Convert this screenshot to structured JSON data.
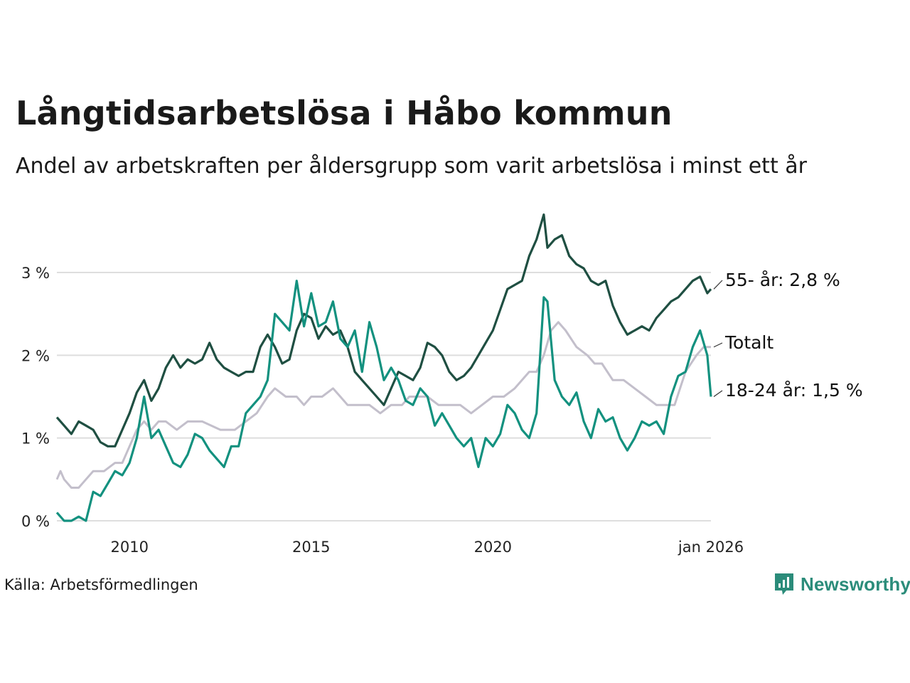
{
  "title": "Långtidsarbetslösa i Håbo kommun",
  "subtitle": "Andel av arbetskraften per åldersgrupp som varit arbetslösa i minst ett år",
  "source": "Källa: Arbetsförmedlingen",
  "brand": "Newsworthy",
  "colors": {
    "total": "#c3bfcb",
    "age_55": "#1f4f42",
    "age_18_24": "#13917f",
    "grid": "#dedede",
    "brand": "#2b8c7a"
  },
  "chart_data": {
    "type": "line",
    "title": "Långtidsarbetslösa i Håbo kommun",
    "subtitle": "Andel av arbetskraften per åldersgrupp som varit arbetslösa i minst ett år",
    "xlabel": "",
    "ylabel": "",
    "x_range": [
      2008.0,
      2026.0
    ],
    "ylim": [
      0,
      3.8
    ],
    "y_ticks": [
      0,
      1,
      2,
      3
    ],
    "y_tick_labels": [
      "0 %",
      "1 %",
      "2 %",
      "3 %"
    ],
    "x_ticks": [
      2010,
      2015,
      2020,
      2026
    ],
    "x_tick_labels": [
      "2010",
      "2015",
      "2020",
      "jan 2026"
    ],
    "grid": true,
    "series": [
      {
        "key": "total",
        "name": "Totalt",
        "label": "Totalt",
        "x": [
          2008.0,
          2008.1,
          2008.2,
          2008.4,
          2008.6,
          2008.8,
          2009.0,
          2009.3,
          2009.6,
          2009.8,
          2010.0,
          2010.2,
          2010.4,
          2010.6,
          2010.8,
          2011.0,
          2011.3,
          2011.6,
          2012.0,
          2012.5,
          2012.9,
          2013.2,
          2013.5,
          2013.8,
          2014.0,
          2014.3,
          2014.6,
          2014.8,
          2015.0,
          2015.3,
          2015.6,
          2015.8,
          2016.0,
          2016.3,
          2016.6,
          2016.9,
          2017.2,
          2017.5,
          2017.7,
          2017.9,
          2018.2,
          2018.5,
          2018.8,
          2019.1,
          2019.4,
          2019.7,
          2020.0,
          2020.3,
          2020.6,
          2020.8,
          2021.0,
          2021.2,
          2021.4,
          2021.6,
          2021.8,
          2022.0,
          2022.3,
          2022.6,
          2022.8,
          2023.0,
          2023.3,
          2023.6,
          2023.9,
          2024.2,
          2024.5,
          2024.8,
          2025.0,
          2025.3,
          2025.6,
          2025.8,
          2026.0
        ],
        "values": [
          0.5,
          0.6,
          0.5,
          0.4,
          0.4,
          0.5,
          0.6,
          0.6,
          0.7,
          0.7,
          0.9,
          1.1,
          1.2,
          1.1,
          1.2,
          1.2,
          1.1,
          1.2,
          1.2,
          1.1,
          1.1,
          1.2,
          1.3,
          1.5,
          1.6,
          1.5,
          1.5,
          1.4,
          1.5,
          1.5,
          1.6,
          1.5,
          1.4,
          1.4,
          1.4,
          1.3,
          1.4,
          1.4,
          1.5,
          1.5,
          1.5,
          1.4,
          1.4,
          1.4,
          1.3,
          1.4,
          1.5,
          1.5,
          1.6,
          1.7,
          1.8,
          1.8,
          2.0,
          2.3,
          2.4,
          2.3,
          2.1,
          2.0,
          1.9,
          1.9,
          1.7,
          1.7,
          1.6,
          1.5,
          1.4,
          1.4,
          1.4,
          1.8,
          2.0,
          2.1,
          2.1
        ]
      },
      {
        "key": "age_55",
        "name": "55- år",
        "label": "55- år: 2,8 %",
        "x": [
          2008.0,
          2008.2,
          2008.4,
          2008.6,
          2008.8,
          2009.0,
          2009.2,
          2009.4,
          2009.6,
          2009.8,
          2010.0,
          2010.2,
          2010.4,
          2010.6,
          2010.8,
          2011.0,
          2011.2,
          2011.4,
          2011.6,
          2011.8,
          2012.0,
          2012.2,
          2012.4,
          2012.6,
          2012.8,
          2013.0,
          2013.2,
          2013.4,
          2013.6,
          2013.8,
          2014.0,
          2014.2,
          2014.4,
          2014.6,
          2014.8,
          2015.0,
          2015.2,
          2015.4,
          2015.6,
          2015.8,
          2016.0,
          2016.2,
          2016.4,
          2016.6,
          2016.8,
          2017.0,
          2017.2,
          2017.4,
          2017.6,
          2017.8,
          2018.0,
          2018.2,
          2018.4,
          2018.6,
          2018.8,
          2019.0,
          2019.2,
          2019.4,
          2019.6,
          2019.8,
          2020.0,
          2020.2,
          2020.4,
          2020.6,
          2020.8,
          2021.0,
          2021.2,
          2021.4,
          2021.5,
          2021.7,
          2021.9,
          2022.1,
          2022.3,
          2022.5,
          2022.7,
          2022.9,
          2023.1,
          2023.3,
          2023.5,
          2023.7,
          2023.9,
          2024.1,
          2024.3,
          2024.5,
          2024.7,
          2024.9,
          2025.1,
          2025.3,
          2025.5,
          2025.7,
          2025.9,
          2026.0
        ],
        "values": [
          1.25,
          1.15,
          1.05,
          1.2,
          1.15,
          1.1,
          0.95,
          0.9,
          0.9,
          1.1,
          1.3,
          1.55,
          1.7,
          1.45,
          1.6,
          1.85,
          2.0,
          1.85,
          1.95,
          1.9,
          1.95,
          2.15,
          1.95,
          1.85,
          1.8,
          1.75,
          1.8,
          1.8,
          2.1,
          2.25,
          2.1,
          1.9,
          1.95,
          2.3,
          2.5,
          2.45,
          2.2,
          2.35,
          2.25,
          2.3,
          2.1,
          1.8,
          1.7,
          1.6,
          1.5,
          1.4,
          1.6,
          1.8,
          1.75,
          1.7,
          1.85,
          2.15,
          2.1,
          2.0,
          1.8,
          1.7,
          1.75,
          1.85,
          2.0,
          2.15,
          2.3,
          2.55,
          2.8,
          2.85,
          2.9,
          3.2,
          3.4,
          3.7,
          3.3,
          3.4,
          3.45,
          3.2,
          3.1,
          3.05,
          2.9,
          2.85,
          2.9,
          2.6,
          2.4,
          2.25,
          2.3,
          2.35,
          2.3,
          2.45,
          2.55,
          2.65,
          2.7,
          2.8,
          2.9,
          2.95,
          2.75,
          2.8
        ]
      },
      {
        "key": "age_18_24",
        "name": "18-24 år",
        "label": "18-24 år: 1,5 %",
        "x": [
          2008.0,
          2008.2,
          2008.4,
          2008.6,
          2008.8,
          2009.0,
          2009.2,
          2009.4,
          2009.6,
          2009.8,
          2010.0,
          2010.2,
          2010.4,
          2010.6,
          2010.8,
          2011.0,
          2011.2,
          2011.4,
          2011.6,
          2011.8,
          2012.0,
          2012.2,
          2012.4,
          2012.6,
          2012.8,
          2013.0,
          2013.2,
          2013.4,
          2013.6,
          2013.8,
          2014.0,
          2014.2,
          2014.4,
          2014.6,
          2014.8,
          2015.0,
          2015.2,
          2015.4,
          2015.6,
          2015.8,
          2016.0,
          2016.2,
          2016.4,
          2016.6,
          2016.8,
          2017.0,
          2017.2,
          2017.4,
          2017.6,
          2017.8,
          2018.0,
          2018.2,
          2018.4,
          2018.6,
          2018.8,
          2019.0,
          2019.2,
          2019.4,
          2019.6,
          2019.8,
          2020.0,
          2020.2,
          2020.4,
          2020.6,
          2020.8,
          2021.0,
          2021.2,
          2021.4,
          2021.5,
          2021.7,
          2021.9,
          2022.1,
          2022.3,
          2022.5,
          2022.7,
          2022.9,
          2023.1,
          2023.3,
          2023.5,
          2023.7,
          2023.9,
          2024.1,
          2024.3,
          2024.5,
          2024.7,
          2024.9,
          2025.1,
          2025.3,
          2025.5,
          2025.7,
          2025.9,
          2026.0
        ],
        "values": [
          0.1,
          0.0,
          0.0,
          0.05,
          0.0,
          0.35,
          0.3,
          0.45,
          0.6,
          0.55,
          0.7,
          1.0,
          1.5,
          1.0,
          1.1,
          0.9,
          0.7,
          0.65,
          0.8,
          1.05,
          1.0,
          0.85,
          0.75,
          0.65,
          0.9,
          0.9,
          1.3,
          1.4,
          1.5,
          1.7,
          2.5,
          2.4,
          2.3,
          2.9,
          2.35,
          2.75,
          2.35,
          2.4,
          2.65,
          2.2,
          2.1,
          2.3,
          1.8,
          2.4,
          2.1,
          1.7,
          1.85,
          1.7,
          1.45,
          1.4,
          1.6,
          1.5,
          1.15,
          1.3,
          1.15,
          1.0,
          0.9,
          1.0,
          0.65,
          1.0,
          0.9,
          1.05,
          1.4,
          1.3,
          1.1,
          1.0,
          1.3,
          2.7,
          2.65,
          1.7,
          1.5,
          1.4,
          1.55,
          1.2,
          1.0,
          1.35,
          1.2,
          1.25,
          1.0,
          0.85,
          1.0,
          1.2,
          1.15,
          1.2,
          1.05,
          1.5,
          1.75,
          1.8,
          2.1,
          2.3,
          2.0,
          1.5
        ]
      }
    ]
  }
}
